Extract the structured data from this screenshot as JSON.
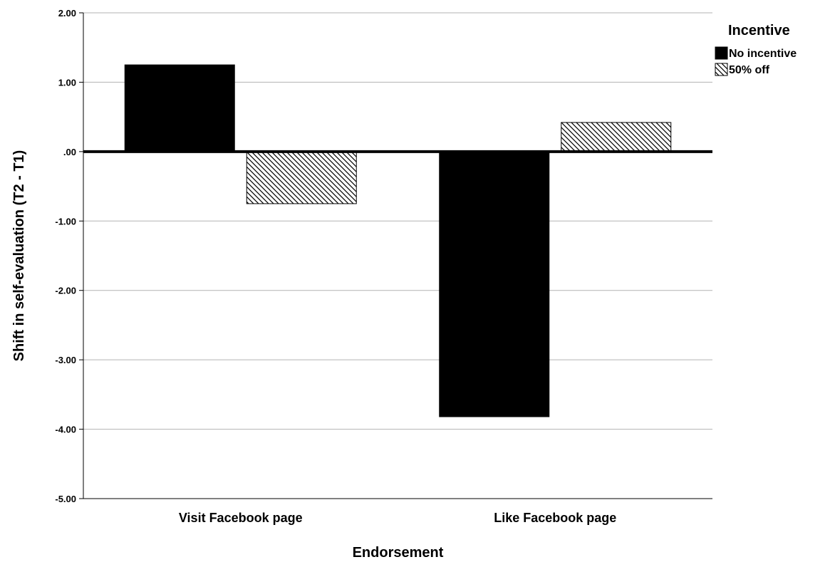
{
  "chart_data": {
    "type": "bar",
    "title": "",
    "xlabel": "Endorsement",
    "ylabel": "Shift in self-evaluation (T2 - T1)",
    "categories": [
      "Visit Facebook page",
      "Like Facebook page"
    ],
    "series": [
      {
        "name": "No incentive",
        "values": [
          1.25,
          -3.82
        ],
        "fill": "solid",
        "color": "#000000"
      },
      {
        "name": "50% off",
        "values": [
          -0.75,
          0.42
        ],
        "fill": "hatched",
        "color": "#000000"
      }
    ],
    "ylim": [
      -5,
      2
    ],
    "yticks": [
      2,
      1,
      0,
      -1,
      -2,
      -3,
      -4,
      -5
    ],
    "ytick_labels": [
      "2.00",
      "1.00",
      ".00",
      "-1.00",
      "-2.00",
      "-3.00",
      "-4.00",
      "-5.00"
    ],
    "grid": true,
    "legend": {
      "title": "Incentive",
      "placement": "top-right"
    }
  }
}
